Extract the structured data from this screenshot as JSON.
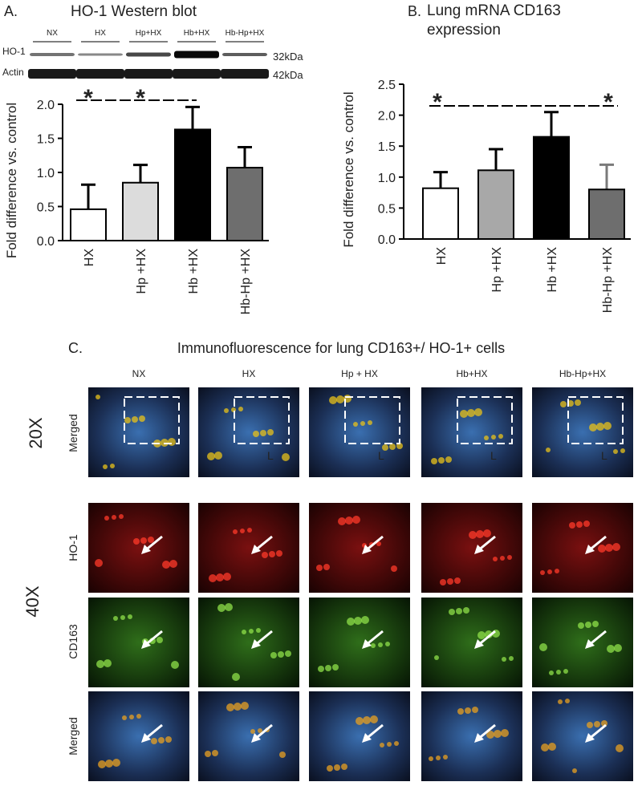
{
  "chart_data": [
    {
      "type": "bar",
      "panel": "A.",
      "title": "HO-1  Western blot",
      "categories": [
        "HX",
        "Hp +HX",
        "Hb +HX",
        "Hb-Hp +HX"
      ],
      "values": [
        0.46,
        0.85,
        1.63,
        1.07
      ],
      "errors": [
        0.36,
        0.26,
        0.33,
        0.3
      ],
      "colors": [
        "#ffffff",
        "#dcdcdc",
        "#000000",
        "#6e6e6e"
      ],
      "y_label": "Fold difference vs. control",
      "ylim": [
        0,
        2.0
      ],
      "yticks": [
        {
          "value": 0,
          "label": "0.0"
        },
        {
          "value": 0.5,
          "label": "0.5"
        },
        {
          "value": 1,
          "label": "1.0"
        },
        {
          "value": 1.5,
          "label": "1.5"
        },
        {
          "value": 2,
          "label": "2.0"
        }
      ],
      "annotations": [
        "*",
        "*"
      ]
    },
    {
      "type": "bar",
      "panel": "B.",
      "title": "Lung mRNA CD163 expression",
      "categories": [
        "HX",
        "Hp +HX",
        "Hb +HX",
        "Hb-Hp +HX"
      ],
      "values": [
        0.82,
        1.11,
        1.65,
        0.8
      ],
      "errors": [
        0.26,
        0.34,
        0.4,
        0.4
      ],
      "colors": [
        "#ffffff",
        "#a8a8a8",
        "#000000",
        "#6e6e6e"
      ],
      "error_colors": [
        "#000000",
        "#000000",
        "#000000",
        "#7a7a7a"
      ],
      "y_label": "Fold difference vs. control",
      "ylim": [
        0,
        2.5
      ],
      "yticks": [
        {
          "value": 0,
          "label": "0.0"
        },
        {
          "value": 0.5,
          "label": "0.5"
        },
        {
          "value": 1,
          "label": "1.0"
        },
        {
          "value": 1.5,
          "label": "1.5"
        },
        {
          "value": 2,
          "label": "2.0"
        },
        {
          "value": 2.5,
          "label": "2.5"
        }
      ],
      "annotations": [
        "*",
        "*"
      ]
    }
  ],
  "western_blot": {
    "lanes": [
      "NX",
      "HX",
      "Hp+HX",
      "Hb+HX",
      "Hb-Hp+HX"
    ],
    "rows": [
      "HO-1",
      "Actin"
    ],
    "sizes": [
      "32kDa",
      "42kDa"
    ]
  },
  "panel_c": {
    "panel": "C.",
    "title": "Immunofluorescence for lung CD163+/ HO-1+ cells",
    "columns": [
      "NX",
      "HX",
      "Hp + HX",
      "Hb+HX",
      "Hb-Hp+HX"
    ],
    "magnifications": [
      "20X",
      "40X"
    ],
    "rows": [
      "Merged",
      "HO-1",
      "CD163",
      "Merged"
    ],
    "lumen_label": "L"
  }
}
